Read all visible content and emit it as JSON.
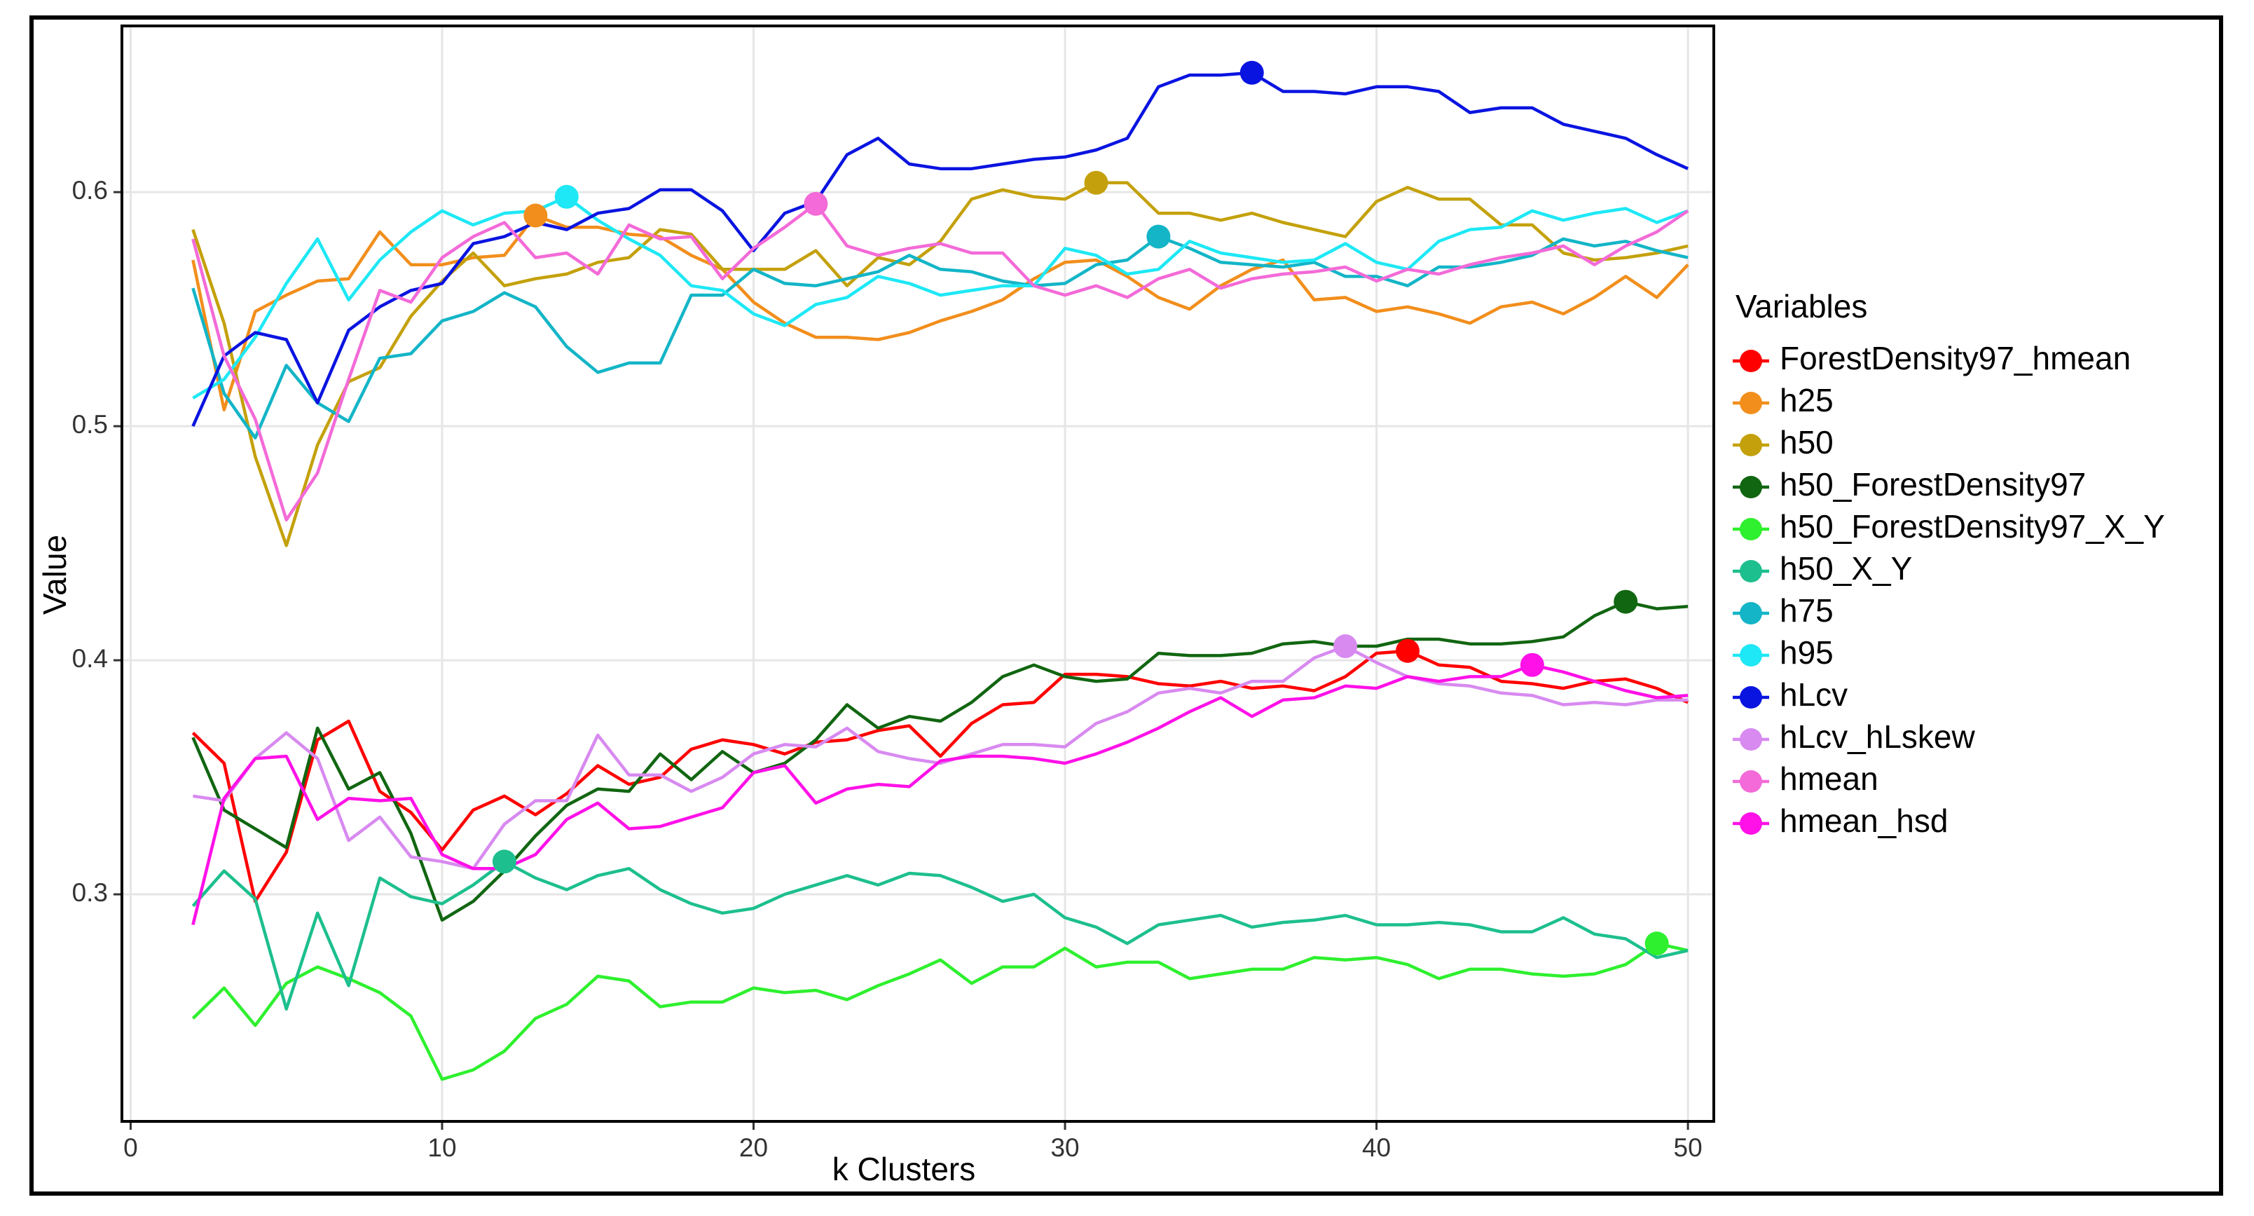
{
  "chart_data": {
    "type": "line",
    "x_label": "k Clusters",
    "y_label": "Value",
    "legend_title": "Variables",
    "x": [
      2,
      3,
      4,
      5,
      6,
      7,
      8,
      9,
      10,
      11,
      12,
      13,
      14,
      15,
      16,
      17,
      18,
      19,
      20,
      21,
      22,
      23,
      24,
      25,
      26,
      27,
      28,
      29,
      30,
      31,
      32,
      33,
      34,
      35,
      36,
      37,
      38,
      39,
      40,
      41,
      42,
      43,
      44,
      45,
      46,
      47,
      48,
      49,
      50
    ],
    "xlim": [
      -0.28,
      50.83
    ],
    "xticks": [
      0,
      10,
      20,
      30,
      40,
      50
    ],
    "ylim": [
      0.203,
      0.671
    ],
    "yticks": [
      0.3,
      0.4,
      0.5,
      0.6
    ],
    "grid": true,
    "legend_position": "right",
    "series": [
      {
        "name": "ForestDensity97_hmean",
        "color": "#ff0000",
        "marker_x": 41,
        "values": [
          0.369,
          0.356,
          0.297,
          0.318,
          0.366,
          0.374,
          0.344,
          0.335,
          0.319,
          0.336,
          0.342,
          0.334,
          0.343,
          0.355,
          0.347,
          0.35,
          0.362,
          0.366,
          0.364,
          0.36,
          0.365,
          0.366,
          0.37,
          0.372,
          0.359,
          0.373,
          0.381,
          0.382,
          0.394,
          0.394,
          0.393,
          0.39,
          0.389,
          0.391,
          0.388,
          0.389,
          0.387,
          0.393,
          0.403,
          0.404,
          0.398,
          0.397,
          0.391,
          0.39,
          0.388,
          0.391,
          0.392,
          0.388,
          0.382
        ]
      },
      {
        "name": "h25",
        "color": "#f28e1c",
        "marker_x": 13,
        "values": [
          0.571,
          0.507,
          0.549,
          0.556,
          0.562,
          0.563,
          0.583,
          0.569,
          0.569,
          0.572,
          0.573,
          0.59,
          0.585,
          0.585,
          0.582,
          0.581,
          0.573,
          0.567,
          0.553,
          0.544,
          0.538,
          0.538,
          0.537,
          0.54,
          0.545,
          0.549,
          0.554,
          0.563,
          0.57,
          0.571,
          0.564,
          0.555,
          0.55,
          0.56,
          0.567,
          0.571,
          0.554,
          0.555,
          0.549,
          0.551,
          0.548,
          0.544,
          0.551,
          0.553,
          0.548,
          0.555,
          0.564,
          0.555,
          0.569
        ]
      },
      {
        "name": "h50",
        "color": "#c4a10c",
        "marker_x": 31,
        "values": [
          0.584,
          0.544,
          0.487,
          0.449,
          0.492,
          0.519,
          0.525,
          0.547,
          0.562,
          0.574,
          0.56,
          0.563,
          0.565,
          0.57,
          0.572,
          0.584,
          0.582,
          0.567,
          0.567,
          0.567,
          0.575,
          0.56,
          0.572,
          0.569,
          0.579,
          0.597,
          0.601,
          0.598,
          0.597,
          0.604,
          0.604,
          0.591,
          0.591,
          0.588,
          0.591,
          0.587,
          0.584,
          0.581,
          0.596,
          0.602,
          0.597,
          0.597,
          0.586,
          0.586,
          0.574,
          0.571,
          0.572,
          0.574,
          0.577
        ]
      },
      {
        "name": "h50_ForestDensity97",
        "color": "#116611",
        "marker_x": 48,
        "values": [
          0.367,
          0.336,
          0.328,
          0.32,
          0.371,
          0.345,
          0.352,
          0.326,
          0.289,
          0.297,
          0.31,
          0.325,
          0.338,
          0.345,
          0.344,
          0.36,
          0.349,
          0.361,
          0.352,
          0.356,
          0.366,
          0.381,
          0.371,
          0.376,
          0.374,
          0.382,
          0.393,
          0.398,
          0.393,
          0.391,
          0.392,
          0.403,
          0.402,
          0.402,
          0.403,
          0.407,
          0.408,
          0.406,
          0.406,
          0.409,
          0.409,
          0.407,
          0.407,
          0.408,
          0.41,
          0.419,
          0.425,
          0.422,
          0.423
        ]
      },
      {
        "name": "h50_ForestDensity97_X_Y",
        "color": "#2ef02e",
        "marker_x": 49,
        "values": [
          0.247,
          0.26,
          0.244,
          0.262,
          0.269,
          0.264,
          0.258,
          0.248,
          0.221,
          0.225,
          0.233,
          0.247,
          0.253,
          0.265,
          0.263,
          0.252,
          0.254,
          0.254,
          0.26,
          0.258,
          0.259,
          0.255,
          0.261,
          0.266,
          0.272,
          0.262,
          0.269,
          0.269,
          0.277,
          0.269,
          0.271,
          0.271,
          0.264,
          0.266,
          0.268,
          0.268,
          0.273,
          0.272,
          0.273,
          0.27,
          0.264,
          0.268,
          0.268,
          0.266,
          0.265,
          0.266,
          0.27,
          0.279,
          0.276
        ]
      },
      {
        "name": "h50_X_Y",
        "color": "#1dbf8e",
        "marker_x": 12,
        "values": [
          0.295,
          0.31,
          0.298,
          0.251,
          0.292,
          0.261,
          0.307,
          0.299,
          0.296,
          0.304,
          0.314,
          0.307,
          0.302,
          0.308,
          0.311,
          0.302,
          0.296,
          0.292,
          0.294,
          0.3,
          0.304,
          0.308,
          0.304,
          0.309,
          0.308,
          0.303,
          0.297,
          0.3,
          0.29,
          0.286,
          0.279,
          0.287,
          0.289,
          0.291,
          0.286,
          0.288,
          0.289,
          0.291,
          0.287,
          0.287,
          0.288,
          0.287,
          0.284,
          0.284,
          0.29,
          0.283,
          0.281,
          0.273,
          0.276
        ]
      },
      {
        "name": "h75",
        "color": "#13b5c7",
        "marker_x": 33,
        "values": [
          0.559,
          0.514,
          0.495,
          0.526,
          0.51,
          0.502,
          0.529,
          0.531,
          0.545,
          0.549,
          0.557,
          0.551,
          0.534,
          0.523,
          0.527,
          0.527,
          0.556,
          0.556,
          0.567,
          0.561,
          0.56,
          0.563,
          0.566,
          0.573,
          0.567,
          0.566,
          0.562,
          0.56,
          0.561,
          0.569,
          0.571,
          0.581,
          0.576,
          0.57,
          0.569,
          0.568,
          0.57,
          0.564,
          0.564,
          0.56,
          0.568,
          0.568,
          0.57,
          0.573,
          0.58,
          0.577,
          0.579,
          0.575,
          0.572
        ]
      },
      {
        "name": "h95",
        "color": "#1ee8f5",
        "marker_x": 14,
        "values": [
          0.512,
          0.52,
          0.538,
          0.561,
          0.58,
          0.554,
          0.571,
          0.583,
          0.592,
          0.586,
          0.591,
          0.592,
          0.598,
          0.588,
          0.58,
          0.573,
          0.56,
          0.558,
          0.548,
          0.543,
          0.552,
          0.555,
          0.564,
          0.561,
          0.556,
          0.558,
          0.56,
          0.56,
          0.576,
          0.573,
          0.565,
          0.567,
          0.579,
          0.574,
          0.572,
          0.57,
          0.571,
          0.578,
          0.57,
          0.567,
          0.579,
          0.584,
          0.585,
          0.592,
          0.588,
          0.591,
          0.593,
          0.587,
          0.592
        ]
      },
      {
        "name": "hLcv",
        "color": "#0a14e0",
        "marker_x": 36,
        "values": [
          0.5,
          0.53,
          0.54,
          0.537,
          0.51,
          0.541,
          0.551,
          0.558,
          0.561,
          0.578,
          0.581,
          0.587,
          0.584,
          0.591,
          0.593,
          0.601,
          0.601,
          0.592,
          0.575,
          0.591,
          0.596,
          0.616,
          0.623,
          0.612,
          0.61,
          0.61,
          0.612,
          0.614,
          0.615,
          0.618,
          0.623,
          0.645,
          0.65,
          0.65,
          0.651,
          0.643,
          0.643,
          0.642,
          0.645,
          0.645,
          0.643,
          0.634,
          0.636,
          0.636,
          0.629,
          0.626,
          0.623,
          0.616,
          0.61
        ]
      },
      {
        "name": "hLcv_hLskew",
        "color": "#d88af0",
        "marker_x": 39,
        "values": [
          0.342,
          0.34,
          0.358,
          0.369,
          0.358,
          0.323,
          0.333,
          0.316,
          0.314,
          0.311,
          0.33,
          0.34,
          0.34,
          0.368,
          0.351,
          0.351,
          0.344,
          0.35,
          0.36,
          0.364,
          0.363,
          0.371,
          0.361,
          0.358,
          0.356,
          0.36,
          0.364,
          0.364,
          0.363,
          0.373,
          0.378,
          0.386,
          0.388,
          0.386,
          0.391,
          0.391,
          0.401,
          0.406,
          0.399,
          0.393,
          0.39,
          0.389,
          0.386,
          0.385,
          0.381,
          0.382,
          0.381,
          0.383,
          0.383
        ]
      },
      {
        "name": "hmean",
        "color": "#f36ad8",
        "marker_x": 22,
        "values": [
          0.58,
          0.53,
          0.503,
          0.46,
          0.48,
          0.52,
          0.558,
          0.553,
          0.572,
          0.581,
          0.587,
          0.572,
          0.574,
          0.565,
          0.586,
          0.58,
          0.581,
          0.563,
          0.576,
          0.585,
          0.595,
          0.577,
          0.573,
          0.576,
          0.578,
          0.574,
          0.574,
          0.56,
          0.556,
          0.56,
          0.555,
          0.563,
          0.567,
          0.559,
          0.563,
          0.565,
          0.566,
          0.568,
          0.562,
          0.567,
          0.565,
          0.569,
          0.572,
          0.574,
          0.577,
          0.569,
          0.577,
          0.583,
          0.592
        ]
      },
      {
        "name": "hmean_hsd",
        "color": "#ff11e8",
        "marker_x": 45,
        "values": [
          0.287,
          0.341,
          0.358,
          0.359,
          0.332,
          0.341,
          0.34,
          0.341,
          0.317,
          0.311,
          0.311,
          0.317,
          0.332,
          0.339,
          0.328,
          0.329,
          0.333,
          0.337,
          0.352,
          0.355,
          0.339,
          0.345,
          0.347,
          0.346,
          0.357,
          0.359,
          0.359,
          0.358,
          0.356,
          0.36,
          0.365,
          0.371,
          0.378,
          0.384,
          0.376,
          0.383,
          0.384,
          0.389,
          0.388,
          0.393,
          0.391,
          0.393,
          0.393,
          0.398,
          0.395,
          0.391,
          0.387,
          0.384,
          0.385
        ]
      }
    ]
  }
}
